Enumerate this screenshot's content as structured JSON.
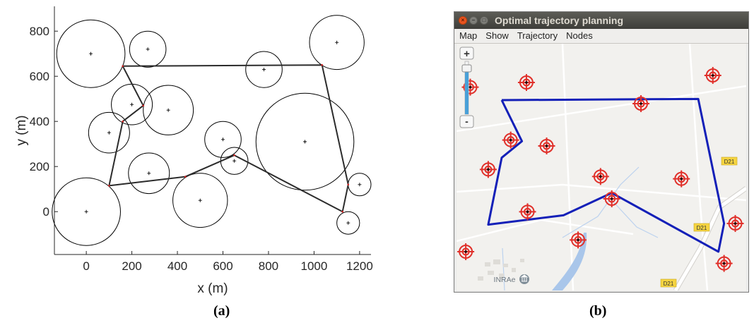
{
  "panel_labels": {
    "a": "(a)",
    "b": "(b)"
  },
  "window": {
    "title": "Optimal trajectory planning",
    "buttons": {
      "close": "×",
      "minimize": "–",
      "maximize": "□"
    },
    "menu": [
      "Map",
      "Show",
      "Trajectory",
      "Nodes"
    ],
    "zoom": {
      "plus": "+",
      "minus": "-",
      "level": 0.2
    },
    "map_labels": {
      "place": "INRAe",
      "road1": "D21",
      "road2": "D21",
      "road3": "D21"
    },
    "colors": {
      "marker": "#e0302a",
      "trajectory": "#1420b8",
      "titlebar": "#3d3d39",
      "close": "#e95420"
    }
  },
  "chart_data": {
    "type": "scatter",
    "xlabel": "x (m)",
    "ylabel": "y (m)",
    "xlim": [
      -140,
      1250
    ],
    "ylim": [
      -190,
      910
    ],
    "xticks": [
      0,
      200,
      400,
      600,
      800,
      1000,
      1200
    ],
    "yticks": [
      0,
      200,
      400,
      600,
      800
    ],
    "grid": false,
    "circles": [
      {
        "x": 20,
        "y": 700,
        "r": 150
      },
      {
        "x": 270,
        "y": 720,
        "r": 80
      },
      {
        "x": 1100,
        "y": 750,
        "r": 120
      },
      {
        "x": 780,
        "y": 630,
        "r": 80
      },
      {
        "x": 200,
        "y": 475,
        "r": 90
      },
      {
        "x": 360,
        "y": 450,
        "r": 110
      },
      {
        "x": 100,
        "y": 350,
        "r": 90
      },
      {
        "x": 600,
        "y": 320,
        "r": 80
      },
      {
        "x": 650,
        "y": 225,
        "r": 60
      },
      {
        "x": 960,
        "y": 310,
        "r": 215
      },
      {
        "x": 275,
        "y": 170,
        "r": 90
      },
      {
        "x": 500,
        "y": 50,
        "r": 120
      },
      {
        "x": 1200,
        "y": 120,
        "r": 50
      },
      {
        "x": 0,
        "y": 0,
        "r": 150
      },
      {
        "x": 1150,
        "y": -50,
        "r": 50
      }
    ],
    "path": [
      [
        160,
        645
      ],
      [
        1035,
        650
      ],
      [
        1150,
        120
      ],
      [
        1125,
        0
      ],
      [
        650,
        250
      ],
      [
        435,
        155
      ],
      [
        100,
        115
      ],
      [
        160,
        400
      ],
      [
        250,
        470
      ],
      [
        160,
        645
      ]
    ]
  }
}
